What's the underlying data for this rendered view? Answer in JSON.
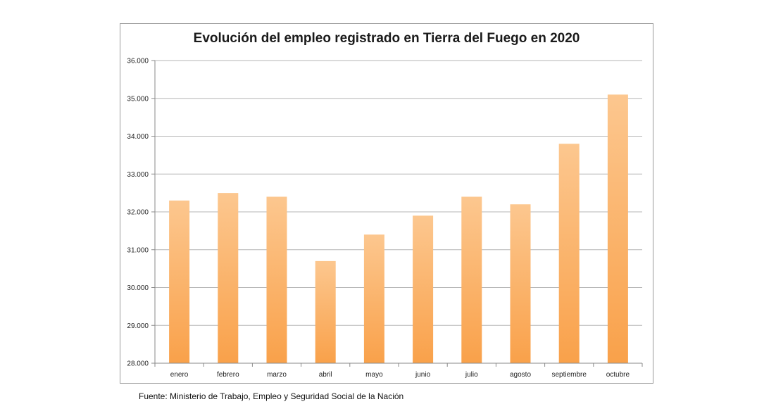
{
  "chart_data": {
    "type": "bar",
    "title": "Evolución del empleo registrado en Tierra del Fuego en 2020",
    "xlabel": "",
    "ylabel": "",
    "categories": [
      "enero",
      "febrero",
      "marzo",
      "abril",
      "mayo",
      "junio",
      "julio",
      "agosto",
      "septiembre",
      "octubre"
    ],
    "values": [
      32300,
      32500,
      32400,
      30700,
      31400,
      31900,
      32400,
      32200,
      33800,
      35100
    ],
    "ylim": [
      28000,
      36000
    ],
    "yticks": [
      28000,
      29000,
      30000,
      31000,
      32000,
      33000,
      34000,
      35000,
      36000
    ],
    "ytick_labels": [
      "28.000",
      "29.000",
      "30.000",
      "31.000",
      "32.000",
      "33.000",
      "34.000",
      "35.000",
      "36.000"
    ],
    "grid": true,
    "legend": "none",
    "bar_color_top": "#fcc78f",
    "bar_color_bottom": "#f9a14a"
  },
  "source_note": "Fuente: Ministerio de Trabajo, Empleo y Seguridad Social de la Nación"
}
